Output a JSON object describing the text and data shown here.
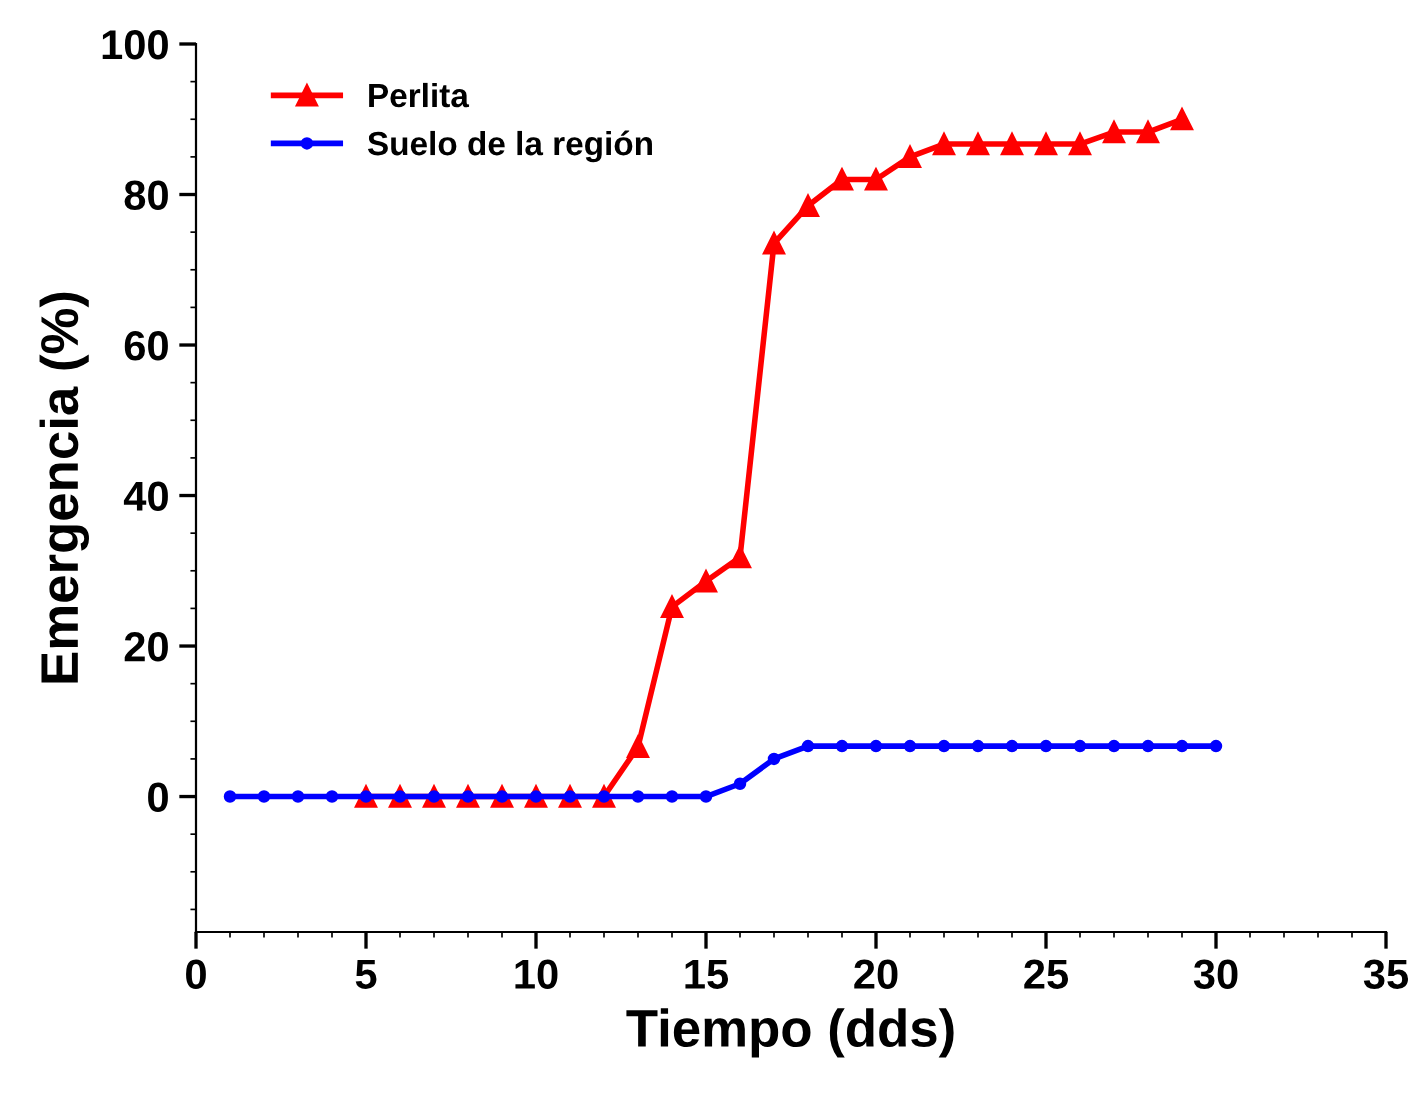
{
  "chart_data": {
    "type": "line",
    "xlabel": "Tiempo (dds)",
    "ylabel": "Emergencia (%)",
    "xlim": [
      0,
      35
    ],
    "xticks": [
      0,
      5,
      10,
      15,
      20,
      25,
      30,
      35
    ],
    "ylim": [
      -18,
      100
    ],
    "yticks": [
      0,
      20,
      40,
      60,
      80,
      100
    ],
    "grid": false,
    "legend": "top left",
    "line_style": "solid",
    "series": [
      {
        "name": "Perlita",
        "color": "#ff0000",
        "marker": "triangle",
        "x": [
          5,
          6,
          7,
          8,
          9,
          10,
          11,
          12,
          13,
          14,
          15,
          16,
          17,
          18,
          19,
          20,
          21,
          22,
          23,
          24,
          25,
          26,
          27,
          28,
          29
        ],
        "values": [
          0,
          0,
          0,
          0,
          0,
          0,
          0,
          0,
          6.6,
          25.2,
          28.6,
          31.8,
          73.5,
          78.5,
          82,
          82,
          85,
          86.7,
          86.7,
          86.7,
          86.7,
          86.7,
          88.3,
          88.3,
          90
        ]
      },
      {
        "name": "Suelo de la región",
        "color": "#0000ff",
        "marker": "circle",
        "x": [
          1,
          2,
          3,
          4,
          5,
          6,
          7,
          8,
          9,
          10,
          11,
          12,
          13,
          14,
          15,
          16,
          17,
          18,
          19,
          20,
          21,
          22,
          23,
          24,
          25,
          26,
          27,
          28,
          29,
          30
        ],
        "values": [
          0,
          0,
          0,
          0,
          0,
          0,
          0,
          0,
          0,
          0,
          0,
          0,
          0,
          0,
          0,
          1.7,
          5,
          6.7,
          6.7,
          6.7,
          6.7,
          6.7,
          6.7,
          6.7,
          6.7,
          6.7,
          6.7,
          6.7,
          6.7,
          6.7
        ]
      }
    ]
  }
}
